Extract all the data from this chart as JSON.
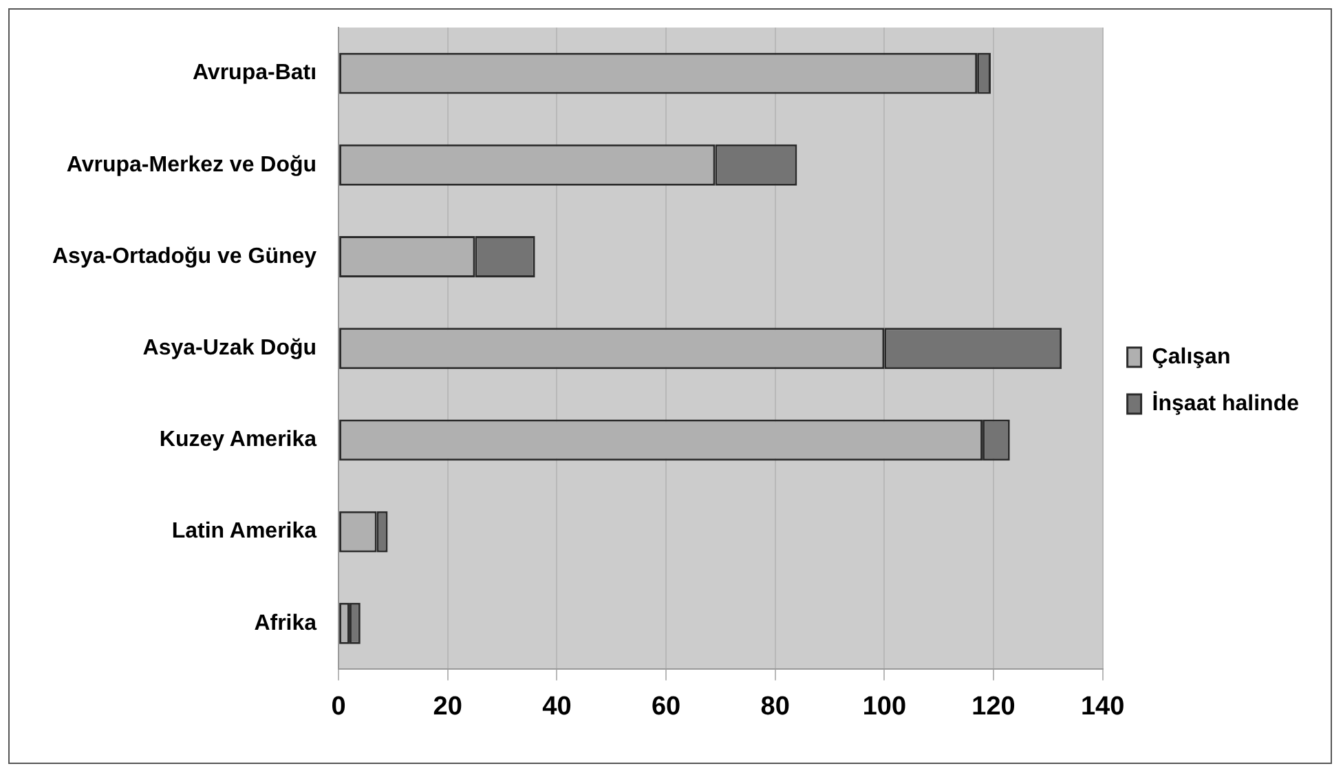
{
  "chart_data": {
    "type": "bar",
    "orientation": "horizontal",
    "stacked": true,
    "categories": [
      "Avrupa-Batı",
      "Avrupa-Merkez ve Doğu",
      "Asya-Ortadoğu ve Güney",
      "Asya-Uzak Doğu",
      "Kuzey Amerika",
      "Latin Amerika",
      "Afrika"
    ],
    "series": [
      {
        "name": "Çalışan",
        "color": "#b0b0b0",
        "values": [
          117,
          69,
          25,
          100,
          118,
          7,
          2
        ]
      },
      {
        "name": "İnşaat halinde",
        "color": "#747474",
        "values": [
          2.5,
          15,
          11,
          32.5,
          5,
          2,
          2
        ]
      }
    ],
    "xlim": [
      0,
      140
    ],
    "xticks": [
      0,
      20,
      40,
      60,
      80,
      100,
      120,
      140
    ],
    "grid": "x",
    "legend": "right"
  }
}
